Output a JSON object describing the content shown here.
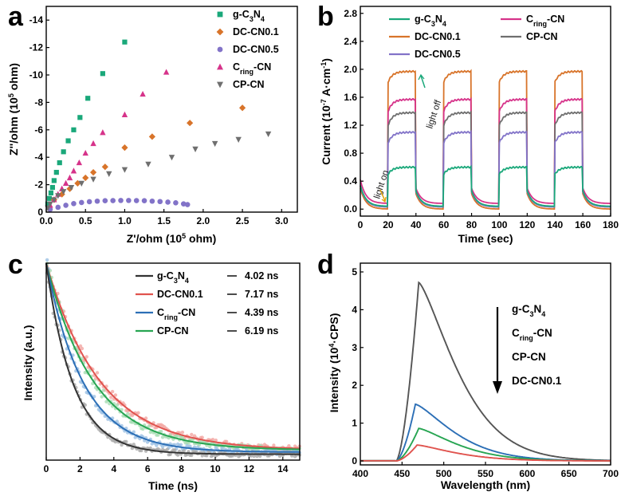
{
  "colors": {
    "g": "#1aa87a",
    "dc01": "#d8742a",
    "dc05": "#8273c8",
    "cring": "#d6338a",
    "cp": "#6f6f6f",
    "c_g": "#333333",
    "c_dc": "#e0534e",
    "c_cring": "#2c6fb6",
    "c_cp": "#27a552",
    "d_cp": "#555555"
  },
  "chart_data": [
    {
      "panel": "a",
      "type": "scatter",
      "xlabel": "Z'/ohm (10",
      "xlabel_sup": "5",
      "xlabel_end": " ohm)",
      "ylabel": "Z''/ohm (10",
      "ylabel_sup": "5",
      "ylabel_end": " ohm)",
      "xlim": [
        0,
        3.2
      ],
      "ylim": [
        0,
        -15
      ],
      "xticks": [
        "0.0",
        "0.5",
        "1.0",
        "1.5",
        "2.0",
        "2.5",
        "3.0"
      ],
      "yticks": [
        "0",
        "-2",
        "-4",
        "-6",
        "-8",
        "-10",
        "-12",
        "-14"
      ],
      "legend": [
        "g-C3N4",
        "DC-CN0.1",
        "DC-CN0.5",
        "Cring-CN",
        "CP-CN"
      ],
      "series": [
        {
          "name": "g-C3N4",
          "marker": "square",
          "x": [
            0.02,
            0.04,
            0.06,
            0.08,
            0.1,
            0.13,
            0.17,
            0.22,
            0.28,
            0.35,
            0.43,
            0.53,
            0.72,
            1.0
          ],
          "y": [
            -0.6,
            -1.0,
            -1.4,
            -1.8,
            -2.3,
            -2.9,
            -3.6,
            -4.4,
            -5.2,
            -6.0,
            -6.9,
            -8.3,
            -10.1,
            -12.4
          ]
        },
        {
          "name": "DC-CN0.1",
          "marker": "diamond",
          "x": [
            0.1,
            0.2,
            0.3,
            0.4,
            0.5,
            0.6,
            0.75,
            1.0,
            1.35,
            1.83,
            2.5
          ],
          "y": [
            -0.9,
            -1.3,
            -1.7,
            -2.1,
            -2.5,
            -2.9,
            -3.3,
            -4.7,
            -5.5,
            -6.5,
            -7.6
          ]
        },
        {
          "name": "DC-CN0.5",
          "x": [
            0.05,
            0.15,
            0.25,
            0.35,
            0.45,
            0.55,
            0.65,
            0.75,
            0.85,
            0.95,
            1.05,
            1.15,
            1.25,
            1.35,
            1.45,
            1.55,
            1.65,
            1.75,
            1.8
          ],
          "y": [
            -0.2,
            -0.35,
            -0.5,
            -0.62,
            -0.7,
            -0.76,
            -0.8,
            -0.83,
            -0.84,
            -0.85,
            -0.85,
            -0.84,
            -0.83,
            -0.8,
            -0.77,
            -0.73,
            -0.68,
            -0.6,
            -0.55
          ]
        },
        {
          "name": "Cring-CN",
          "marker": "triangle-up",
          "x": [
            0.05,
            0.1,
            0.15,
            0.2,
            0.25,
            0.3,
            0.35,
            0.42,
            0.5,
            0.6,
            0.72,
            1.0,
            1.23,
            1.53
          ],
          "y": [
            -0.5,
            -0.9,
            -1.3,
            -1.7,
            -2.1,
            -2.5,
            -3.0,
            -3.6,
            -4.3,
            -5.0,
            -5.8,
            -7.1,
            -8.6,
            -10.2
          ]
        },
        {
          "name": "CP-CN",
          "marker": "triangle-down",
          "x": [
            0.02,
            0.05,
            0.1,
            0.15,
            0.22,
            0.32,
            0.45,
            0.6,
            0.8,
            1.0,
            1.3,
            1.6,
            1.9,
            2.15,
            2.45,
            2.83
          ],
          "y": [
            -0.3,
            -0.6,
            -0.9,
            -1.2,
            -1.5,
            -1.8,
            -2.1,
            -2.4,
            -2.8,
            -3.1,
            -3.5,
            -4.0,
            -4.6,
            -5.0,
            -5.3,
            -5.7
          ]
        }
      ]
    },
    {
      "panel": "b",
      "type": "line",
      "xlabel": "Time (sec)",
      "ylabel": "Current (10",
      "ylabel_sup": "-7",
      "ylabel_end": " A·cm",
      "ylabel_sup2": "-1",
      "ylabel_close": ")",
      "xlim": [
        0,
        180
      ],
      "ylim": [
        -0.1,
        2.9
      ],
      "xticks": [
        "0",
        "20",
        "40",
        "60",
        "80",
        "100",
        "120",
        "140",
        "160",
        "180"
      ],
      "yticks": [
        "0.0",
        "0.4",
        "0.8",
        "1.2",
        "1.6",
        "2.0",
        "2.4",
        "2.8"
      ],
      "on_periods": [
        [
          20,
          40
        ],
        [
          60,
          80
        ],
        [
          100,
          120
        ],
        [
          140,
          160
        ]
      ],
      "annotations": [
        "light on",
        "light off"
      ],
      "legend": [
        "g-C3N4",
        "Cring-CN",
        "DC-CN0.1",
        "CP-CN",
        "DC-CN0.5"
      ],
      "series": [
        {
          "name": "DC-CN0.1",
          "on_start": 1.82,
          "on_plateau": 1.97,
          "off": 0.0
        },
        {
          "name": "Cring-CN",
          "on_start": 1.4,
          "on_plateau": 1.57,
          "off": 0.08
        },
        {
          "name": "CP-CN",
          "on_start": 1.2,
          "on_plateau": 1.38,
          "off": 0.03
        },
        {
          "name": "DC-CN0.5",
          "on_start": 0.95,
          "on_plateau": 1.1,
          "off": 0.03
        },
        {
          "name": "g-C3N4",
          "on_start": 0.5,
          "on_plateau": 0.6,
          "off": 0.04
        }
      ]
    },
    {
      "panel": "c",
      "type": "line",
      "xlabel": "Time (ns)",
      "ylabel": "Intensity (a.u.)",
      "xlim": [
        0,
        15
      ],
      "xticks": [
        "0",
        "2",
        "4",
        "6",
        "8",
        "10",
        "12",
        "14"
      ],
      "legend": [
        "g-C3N4",
        "DC-CN0.1",
        "Cring-CN",
        "CP-CN"
      ],
      "lifetimes": [
        "4.02 ns",
        "7.17 ns",
        "4.39 ns",
        "6.19 ns"
      ],
      "series": [
        {
          "name": "g-C3N4",
          "tau_display": 1.6,
          "floor": 0.03
        },
        {
          "name": "DC-CN0.1",
          "tau_display": 3.2,
          "floor": 0.05
        },
        {
          "name": "Cring-CN",
          "tau_display": 2.2,
          "floor": 0.04
        },
        {
          "name": "CP-CN",
          "tau_display": 2.8,
          "floor": 0.05
        }
      ]
    },
    {
      "panel": "d",
      "type": "line",
      "xlabel": "Wavelength (nm)",
      "ylabel": "Intensity (10",
      "ylabel_sup": "4",
      "ylabel_end": "·CPS)",
      "xlim": [
        400,
        700
      ],
      "ylim": [
        0,
        5
      ],
      "xticks": [
        "400",
        "450",
        "500",
        "550",
        "600",
        "650",
        "700"
      ],
      "yticks": [
        "0",
        "1",
        "2",
        "3",
        "4",
        "5"
      ],
      "legend": [
        "g-C3N4",
        "Cring-CN",
        "CP-CN",
        "DC-CN0.1"
      ],
      "series": [
        {
          "name": "g-C3N4",
          "peak_nm": 470,
          "peak": 4.72
        },
        {
          "name": "Cring-CN",
          "peak_nm": 466,
          "peak": 1.5
        },
        {
          "name": "CP-CN",
          "peak_nm": 470,
          "peak": 0.86
        },
        {
          "name": "DC-CN0.1",
          "peak_nm": 468,
          "peak": 0.42
        }
      ]
    }
  ],
  "panels": {
    "a": "a",
    "b": "b",
    "c": "c",
    "d": "d"
  }
}
